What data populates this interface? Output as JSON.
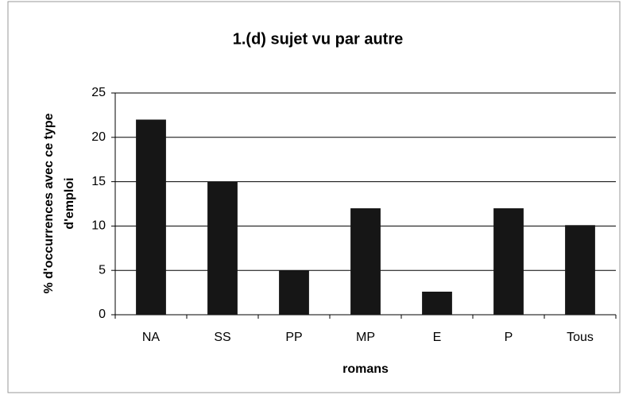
{
  "chart_data": {
    "type": "bar",
    "title": "1.(d) sujet vu par autre",
    "xlabel": "romans",
    "ylabel": [
      "% d'occurrences avec ce type",
      "d'emploi"
    ],
    "categories": [
      "NA",
      "SS",
      "PP",
      "MP",
      "E",
      "P",
      "Tous"
    ],
    "values": [
      22,
      15,
      5,
      12,
      2.6,
      12,
      10.1
    ],
    "color": "#161616",
    "ylim": [
      0,
      25
    ],
    "yticks": [
      0,
      5,
      10,
      15,
      20,
      25
    ],
    "grid": true
  }
}
